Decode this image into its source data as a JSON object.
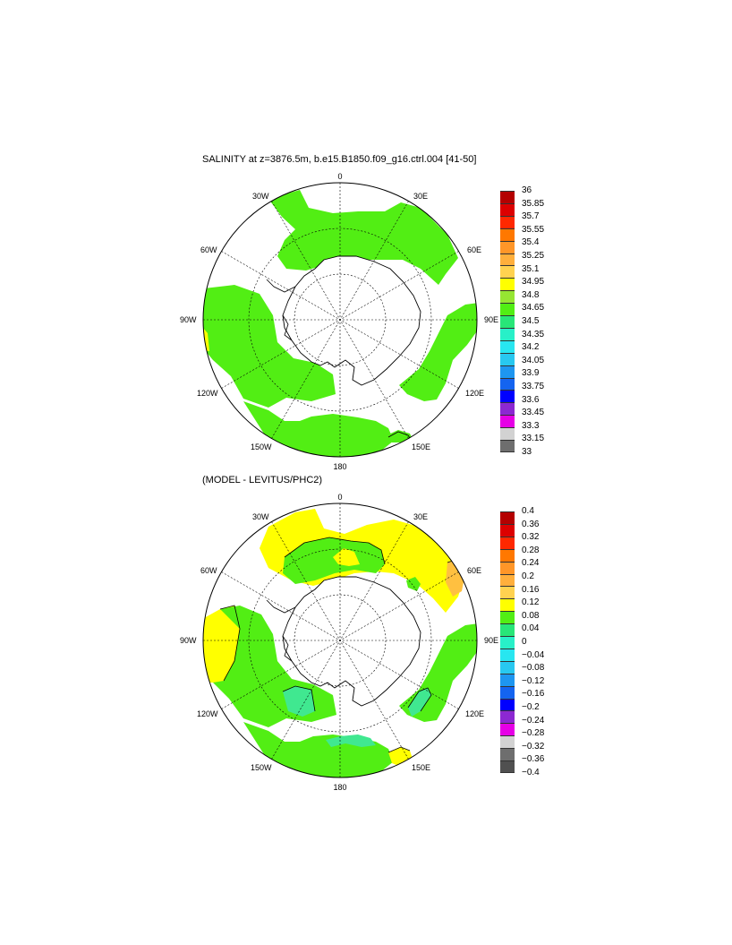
{
  "colors": {
    "land": "#ffffff",
    "ocean_missing": "#ffffff",
    "green": "#52ee14",
    "yellow": "#ffff00",
    "orange_light": "#ffc040",
    "teal": "#40e890",
    "outline": "#000000"
  },
  "map_labels": {
    "lat0": "0",
    "lon30e": "30E",
    "lon60e": "60E",
    "lon90e": "90E",
    "lon120e": "120E",
    "lon150e": "150E",
    "lon180": "180",
    "lon150w": "150W",
    "lon120w": "120W",
    "lon90w": "90W",
    "lon60w": "60W",
    "lon30w": "30W"
  },
  "panels": [
    {
      "title": "SALINITY at z=3876.5m, b.e15.B1850.f09_g16.ctrl.004 [41-50]",
      "colorbar": {
        "labels": [
          "36",
          "35.85",
          "35.7",
          "35.55",
          "35.4",
          "35.25",
          "35.1",
          "34.95",
          "34.8",
          "34.65",
          "34.5",
          "34.35",
          "34.2",
          "34.05",
          "33.9",
          "33.75",
          "33.6",
          "33.45",
          "33.3",
          "33.15",
          "33"
        ],
        "colors": [
          "#b40000",
          "#dc0000",
          "#ff2800",
          "#ff7800",
          "#ff9628",
          "#ffaf3c",
          "#ffd250",
          "#ffff00",
          "#96e632",
          "#52ee14",
          "#28e678",
          "#28f0c8",
          "#28e6f0",
          "#28c8f0",
          "#1e96f0",
          "#1464f0",
          "#0000ff",
          "#8c28d2",
          "#e600e6",
          "#d2d2d2",
          "#6e6e6e"
        ]
      }
    },
    {
      "title": "(MODEL - LEVITUS/PHC2)",
      "colorbar": {
        "labels": [
          "0.4",
          "0.36",
          "0.32",
          "0.28",
          "0.24",
          "0.2",
          "0.16",
          "0.12",
          "0.08",
          "0.04",
          "0",
          "−0.04",
          "−0.08",
          "−0.12",
          "−0.16",
          "−0.2",
          "−0.24",
          "−0.28",
          "−0.32",
          "−0.36",
          "−0.4"
        ],
        "colors": [
          "#b40000",
          "#dc0000",
          "#ff2800",
          "#ff7800",
          "#ff9628",
          "#ffaf3c",
          "#ffd250",
          "#ffff00",
          "#52ee14",
          "#28e678",
          "#28f0c8",
          "#28e6f0",
          "#28c8f0",
          "#1e96f0",
          "#1464f0",
          "#0000ff",
          "#8c28d2",
          "#e600e6",
          "#d2d2d2",
          "#6e6e6e",
          "#505050"
        ]
      }
    }
  ]
}
